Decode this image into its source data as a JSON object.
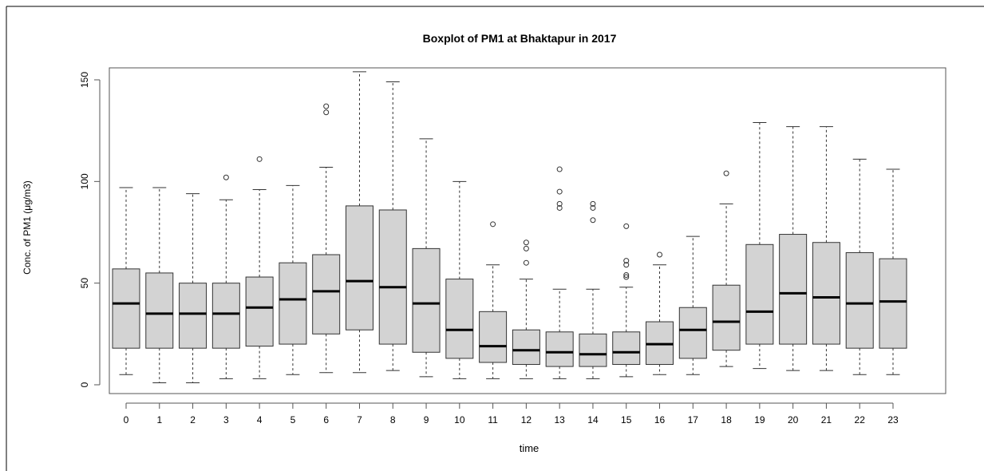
{
  "chart_data": {
    "type": "boxplot",
    "title": "Boxplot of PM1 at Bhaktapur in 2017",
    "xlabel": "time",
    "ylabel": "Conc. of PM1 (μg/m3)",
    "ylim": [
      0,
      155
    ],
    "y_ticks": [
      0,
      50,
      100,
      150
    ],
    "categories": [
      "0",
      "1",
      "2",
      "3",
      "4",
      "5",
      "6",
      "7",
      "8",
      "9",
      "10",
      "11",
      "12",
      "13",
      "14",
      "15",
      "16",
      "17",
      "18",
      "19",
      "20",
      "21",
      "22",
      "23"
    ],
    "box_color": "#d3d3d3",
    "boxes": [
      {
        "min": 5,
        "q1": 18,
        "median": 40,
        "q3": 57,
        "max": 97,
        "outliers": []
      },
      {
        "min": 1,
        "q1": 18,
        "median": 35,
        "q3": 55,
        "max": 97,
        "outliers": []
      },
      {
        "min": 1,
        "q1": 18,
        "median": 35,
        "q3": 50,
        "max": 94,
        "outliers": []
      },
      {
        "min": 3,
        "q1": 18,
        "median": 35,
        "q3": 50,
        "max": 91,
        "outliers": [
          102
        ]
      },
      {
        "min": 3,
        "q1": 19,
        "median": 38,
        "q3": 53,
        "max": 96,
        "outliers": [
          111
        ]
      },
      {
        "min": 5,
        "q1": 20,
        "median": 42,
        "q3": 60,
        "max": 98,
        "outliers": []
      },
      {
        "min": 6,
        "q1": 25,
        "median": 46,
        "q3": 64,
        "max": 107,
        "outliers": [
          134,
          137
        ]
      },
      {
        "min": 6,
        "q1": 27,
        "median": 51,
        "q3": 88,
        "max": 154,
        "outliers": []
      },
      {
        "min": 7,
        "q1": 20,
        "median": 48,
        "q3": 86,
        "max": 149,
        "outliers": []
      },
      {
        "min": 4,
        "q1": 16,
        "median": 40,
        "q3": 67,
        "max": 121,
        "outliers": []
      },
      {
        "min": 3,
        "q1": 13,
        "median": 27,
        "q3": 52,
        "max": 100,
        "outliers": []
      },
      {
        "min": 3,
        "q1": 11,
        "median": 19,
        "q3": 36,
        "max": 59,
        "outliers": [
          79
        ]
      },
      {
        "min": 3,
        "q1": 10,
        "median": 17,
        "q3": 27,
        "max": 52,
        "outliers": [
          60,
          67,
          70
        ]
      },
      {
        "min": 3,
        "q1": 9,
        "median": 16,
        "q3": 26,
        "max": 47,
        "outliers": [
          87,
          89,
          95,
          106
        ]
      },
      {
        "min": 3,
        "q1": 9,
        "median": 15,
        "q3": 25,
        "max": 47,
        "outliers": [
          81,
          87,
          89
        ]
      },
      {
        "min": 4,
        "q1": 10,
        "median": 16,
        "q3": 26,
        "max": 48,
        "outliers": [
          53,
          54,
          59,
          61,
          78
        ]
      },
      {
        "min": 5,
        "q1": 10,
        "median": 20,
        "q3": 31,
        "max": 59,
        "outliers": [
          64
        ]
      },
      {
        "min": 5,
        "q1": 13,
        "median": 27,
        "q3": 38,
        "max": 73,
        "outliers": []
      },
      {
        "min": 9,
        "q1": 17,
        "median": 31,
        "q3": 49,
        "max": 89,
        "outliers": [
          104
        ]
      },
      {
        "min": 8,
        "q1": 20,
        "median": 36,
        "q3": 69,
        "max": 129,
        "outliers": []
      },
      {
        "min": 7,
        "q1": 20,
        "median": 45,
        "q3": 74,
        "max": 127,
        "outliers": []
      },
      {
        "min": 7,
        "q1": 20,
        "median": 43,
        "q3": 70,
        "max": 127,
        "outliers": []
      },
      {
        "min": 5,
        "q1": 18,
        "median": 40,
        "q3": 65,
        "max": 111,
        "outliers": []
      },
      {
        "min": 5,
        "q1": 18,
        "median": 41,
        "q3": 62,
        "max": 106,
        "outliers": []
      }
    ]
  }
}
